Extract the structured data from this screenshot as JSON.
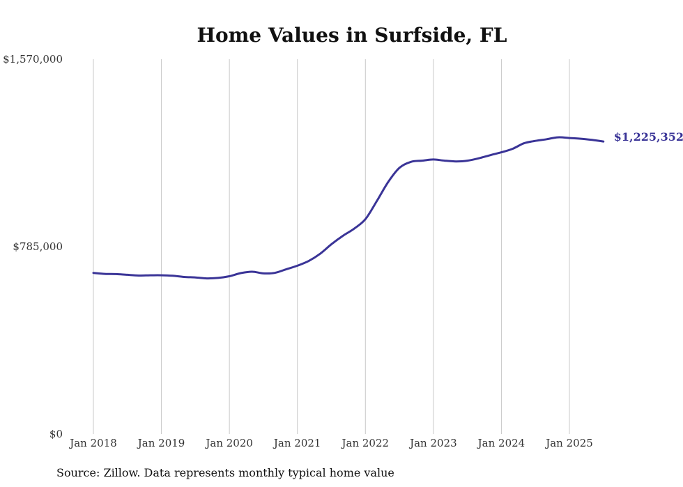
{
  "chart_data": {
    "type": "line",
    "title": "Home Values in Surfside, FL",
    "source": "Source: Zillow. Data represents monthly typical home value",
    "ylim": [
      0,
      1570000
    ],
    "y_ticks": [
      {
        "value": 0,
        "label": "$0"
      },
      {
        "value": 785000,
        "label": "$785,000"
      },
      {
        "value": 1570000,
        "label": "$1,570,000"
      }
    ],
    "x_ticks": [
      {
        "value": "2018-01",
        "label": "Jan 2018"
      },
      {
        "value": "2019-01",
        "label": "Jan 2019"
      },
      {
        "value": "2020-01",
        "label": "Jan 2020"
      },
      {
        "value": "2021-01",
        "label": "Jan 2021"
      },
      {
        "value": "2022-01",
        "label": "Jan 2022"
      },
      {
        "value": "2023-01",
        "label": "Jan 2023"
      },
      {
        "value": "2024-01",
        "label": "Jan 2024"
      },
      {
        "value": "2025-01",
        "label": "Jan 2025"
      }
    ],
    "grid": "vertical",
    "line_color": "#3a3497",
    "end_label": "$1,225,352",
    "series": [
      {
        "points": [
          [
            "2018-01",
            675000
          ],
          [
            "2018-03",
            671000
          ],
          [
            "2018-05",
            670000
          ],
          [
            "2018-07",
            667000
          ],
          [
            "2018-09",
            664000
          ],
          [
            "2018-11",
            665000
          ],
          [
            "2019-01",
            665000
          ],
          [
            "2019-03",
            663000
          ],
          [
            "2019-05",
            658000
          ],
          [
            "2019-07",
            656000
          ],
          [
            "2019-09",
            652000
          ],
          [
            "2019-11",
            654000
          ],
          [
            "2020-01",
            661000
          ],
          [
            "2020-03",
            674000
          ],
          [
            "2020-05",
            680000
          ],
          [
            "2020-07",
            673000
          ],
          [
            "2020-09",
            675000
          ],
          [
            "2020-11",
            690000
          ],
          [
            "2021-01",
            705000
          ],
          [
            "2021-03",
            725000
          ],
          [
            "2021-05",
            755000
          ],
          [
            "2021-07",
            795000
          ],
          [
            "2021-09",
            830000
          ],
          [
            "2021-11",
            860000
          ],
          [
            "2022-01",
            900000
          ],
          [
            "2022-03",
            975000
          ],
          [
            "2022-05",
            1055000
          ],
          [
            "2022-07",
            1115000
          ],
          [
            "2022-09",
            1140000
          ],
          [
            "2022-11",
            1145000
          ],
          [
            "2023-01",
            1150000
          ],
          [
            "2023-03",
            1145000
          ],
          [
            "2023-05",
            1142000
          ],
          [
            "2023-07",
            1145000
          ],
          [
            "2023-09",
            1155000
          ],
          [
            "2023-11",
            1168000
          ],
          [
            "2024-01",
            1180000
          ],
          [
            "2024-03",
            1195000
          ],
          [
            "2024-05",
            1218000
          ],
          [
            "2024-07",
            1228000
          ],
          [
            "2024-09",
            1235000
          ],
          [
            "2024-11",
            1243000
          ],
          [
            "2025-01",
            1240000
          ],
          [
            "2025-03",
            1237000
          ],
          [
            "2025-05",
            1232000
          ],
          [
            "2025-07",
            1225352
          ]
        ]
      }
    ]
  }
}
